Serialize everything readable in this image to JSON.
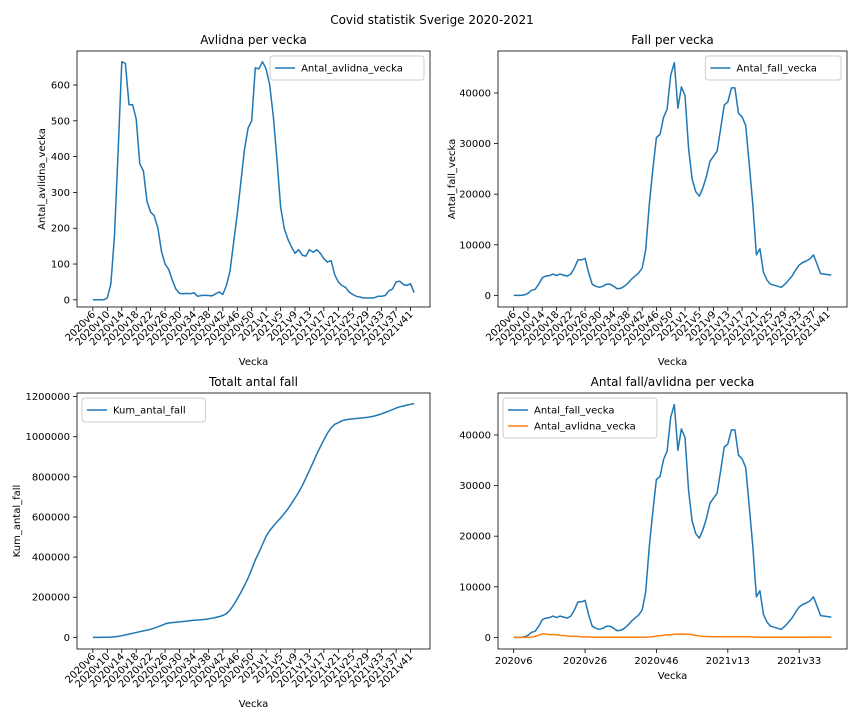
{
  "suptitle": "Covid statistik Sverige 2020-2021",
  "colors": {
    "series1": "#1f77b4",
    "series2": "#ff7f0e"
  },
  "chart_data": [
    {
      "type": "line",
      "title": "Avlidna per vecka",
      "xlabel": "Vecka",
      "ylabel": "Antal_avlidna_vecka",
      "legend": "top-right",
      "grid": false,
      "ylim": [
        -20,
        695
      ],
      "yticks": [
        0,
        100,
        200,
        300,
        400,
        500,
        600
      ],
      "xtick_labels": [
        "2020v6",
        "2020v10",
        "2020v14",
        "2020v18",
        "2020v22",
        "2020v26",
        "2020v30",
        "2020v34",
        "2020v38",
        "2020v42",
        "2020v46",
        "2020v50",
        "2021v1",
        "2021v5",
        "2021v9",
        "2021v13",
        "2021v17",
        "2021v21",
        "2021v25",
        "2021v29",
        "2021v33",
        "2021v37",
        "2021v41"
      ],
      "series": [
        {
          "name": "Antal_avlidna_vecka",
          "values": [
            0,
            0,
            0,
            0,
            5,
            45,
            180,
            420,
            665,
            660,
            545,
            545,
            505,
            380,
            360,
            275,
            245,
            235,
            200,
            135,
            100,
            85,
            55,
            30,
            18,
            17,
            18,
            17,
            20,
            10,
            12,
            13,
            12,
            11,
            17,
            22,
            15,
            40,
            80,
            160,
            240,
            330,
            420,
            480,
            500,
            648,
            645,
            665,
            645,
            600,
            510,
            390,
            260,
            200,
            170,
            148,
            130,
            140,
            125,
            122,
            140,
            133,
            140,
            130,
            115,
            105,
            110,
            70,
            50,
            40,
            35,
            22,
            15,
            10,
            8,
            5,
            5,
            5,
            6,
            10,
            10,
            12,
            25,
            30,
            50,
            52,
            43,
            40,
            45,
            20
          ]
        }
      ]
    },
    {
      "type": "line",
      "title": "Fall per vecka",
      "xlabel": "Vecka",
      "ylabel": "Antal_fall_vecka",
      "legend": "top-right",
      "grid": false,
      "ylim": [
        -2300,
        48300
      ],
      "yticks": [
        0,
        10000,
        20000,
        30000,
        40000
      ],
      "xtick_labels": [
        "2020v6",
        "2020v10",
        "2020v14",
        "2020v18",
        "2020v22",
        "2020v26",
        "2020v30",
        "2020v34",
        "2020v38",
        "2020v42",
        "2020v46",
        "2020v50",
        "2021v1",
        "2021v5",
        "2021v9",
        "2021v13",
        "2021v17",
        "2021v21",
        "2021v25",
        "2021v29",
        "2021v33",
        "2021v37",
        "2021v41"
      ],
      "series": [
        {
          "name": "Antal_fall_vecka",
          "values": [
            0,
            0,
            0,
            100,
            400,
            1000,
            1200,
            2200,
            3500,
            3800,
            3900,
            4200,
            3900,
            4200,
            4000,
            3800,
            4200,
            5400,
            7000,
            7000,
            7300,
            4500,
            2200,
            1800,
            1600,
            1800,
            2200,
            2200,
            1800,
            1300,
            1400,
            1800,
            2400,
            3200,
            3800,
            4400,
            5400,
            9000,
            18000,
            25000,
            31200,
            31800,
            35200,
            36800,
            43500,
            46000,
            37000,
            41200,
            39500,
            29000,
            23000,
            20500,
            19600,
            21200,
            23500,
            26500,
            27500,
            28500,
            33000,
            37600,
            38200,
            41000,
            41000,
            36000,
            35300,
            33600,
            26000,
            18000,
            8000,
            9200,
            4500,
            3000,
            2200,
            2000,
            1800,
            1600,
            2200,
            3000,
            3800,
            5000,
            6000,
            6500,
            6800,
            7200,
            8000,
            6200,
            4300,
            4200,
            4100,
            4000
          ]
        }
      ]
    },
    {
      "type": "line",
      "title": "Totalt antal fall",
      "xlabel": "Vecka",
      "ylabel": "Kum_antal_fall",
      "legend": "top-left",
      "grid": false,
      "ylim": [
        -58000,
        1218000
      ],
      "yticks": [
        0,
        200000,
        400000,
        600000,
        800000,
        1000000,
        1200000
      ],
      "xtick_labels": [
        "2020v6",
        "2020v10",
        "2020v14",
        "2020v18",
        "2020v22",
        "2020v26",
        "2020v30",
        "2020v34",
        "2020v38",
        "2020v42",
        "2020v46",
        "2020v50",
        "2021v1",
        "2021v5",
        "2021v9",
        "2021v13",
        "2021v17",
        "2021v21",
        "2021v25",
        "2021v29",
        "2021v33",
        "2021v37",
        "2021v41"
      ],
      "series": [
        {
          "name": "Kum_antal_fall",
          "values": [
            0,
            0,
            0,
            100,
            500,
            1500,
            2700,
            4900,
            8400,
            12200,
            16100,
            20300,
            24200,
            28400,
            32400,
            36200,
            40400,
            45800,
            52800,
            59800,
            67100,
            71600,
            73800,
            75600,
            77200,
            79000,
            81200,
            83400,
            85200,
            86500,
            87900,
            89700,
            92100,
            95300,
            99100,
            103500,
            108900,
            117900,
            135900,
            160900,
            192100,
            223900,
            259100,
            295900,
            339400,
            385400,
            422400,
            463600,
            503100,
            532100,
            555100,
            575600,
            595200,
            616400,
            639900,
            666400,
            693900,
            722400,
            755400,
            793000,
            831200,
            872200,
            913200,
            949200,
            984500,
            1018100,
            1044100,
            1062100,
            1070100,
            1079300,
            1083800,
            1086800,
            1089000,
            1091000,
            1092800,
            1094400,
            1096600,
            1099600,
            1103400,
            1108400,
            1114400,
            1120900,
            1127700,
            1134900,
            1142900,
            1149100,
            1153400,
            1157600,
            1161700,
            1165700
          ]
        }
      ]
    },
    {
      "type": "line",
      "title": "Antal fall/avlidna per vecka",
      "xlabel": "Vecka",
      "ylabel": "",
      "legend": "top-left",
      "grid": false,
      "ylim": [
        -2300,
        48300
      ],
      "yticks": [
        0,
        10000,
        20000,
        30000,
        40000
      ],
      "xtick_labels": [
        "2020v6",
        "2020v26",
        "2020v46",
        "2021v13",
        "2021v33"
      ],
      "series": [
        {
          "name": "Antal_fall_vecka",
          "values": [
            0,
            0,
            0,
            100,
            400,
            1000,
            1200,
            2200,
            3500,
            3800,
            3900,
            4200,
            3900,
            4200,
            4000,
            3800,
            4200,
            5400,
            7000,
            7000,
            7300,
            4500,
            2200,
            1800,
            1600,
            1800,
            2200,
            2200,
            1800,
            1300,
            1400,
            1800,
            2400,
            3200,
            3800,
            4400,
            5400,
            9000,
            18000,
            25000,
            31200,
            31800,
            35200,
            36800,
            43500,
            46000,
            37000,
            41200,
            39500,
            29000,
            23000,
            20500,
            19600,
            21200,
            23500,
            26500,
            27500,
            28500,
            33000,
            37600,
            38200,
            41000,
            41000,
            36000,
            35300,
            33600,
            26000,
            18000,
            8000,
            9200,
            4500,
            3000,
            2200,
            2000,
            1800,
            1600,
            2200,
            3000,
            3800,
            5000,
            6000,
            6500,
            6800,
            7200,
            8000,
            6200,
            4300,
            4200,
            4100,
            4000
          ]
        },
        {
          "name": "Antal_avlidna_vecka",
          "values": [
            0,
            0,
            0,
            0,
            5,
            45,
            180,
            420,
            665,
            660,
            545,
            545,
            505,
            380,
            360,
            275,
            245,
            235,
            200,
            135,
            100,
            85,
            55,
            30,
            18,
            17,
            18,
            17,
            20,
            10,
            12,
            13,
            12,
            11,
            17,
            22,
            15,
            40,
            80,
            160,
            240,
            330,
            420,
            480,
            500,
            648,
            645,
            665,
            645,
            600,
            510,
            390,
            260,
            200,
            170,
            148,
            130,
            140,
            125,
            122,
            140,
            133,
            140,
            130,
            115,
            105,
            110,
            70,
            50,
            40,
            35,
            22,
            15,
            10,
            8,
            5,
            5,
            5,
            6,
            10,
            10,
            12,
            25,
            30,
            50,
            52,
            43,
            40,
            45,
            20
          ]
        }
      ]
    }
  ]
}
